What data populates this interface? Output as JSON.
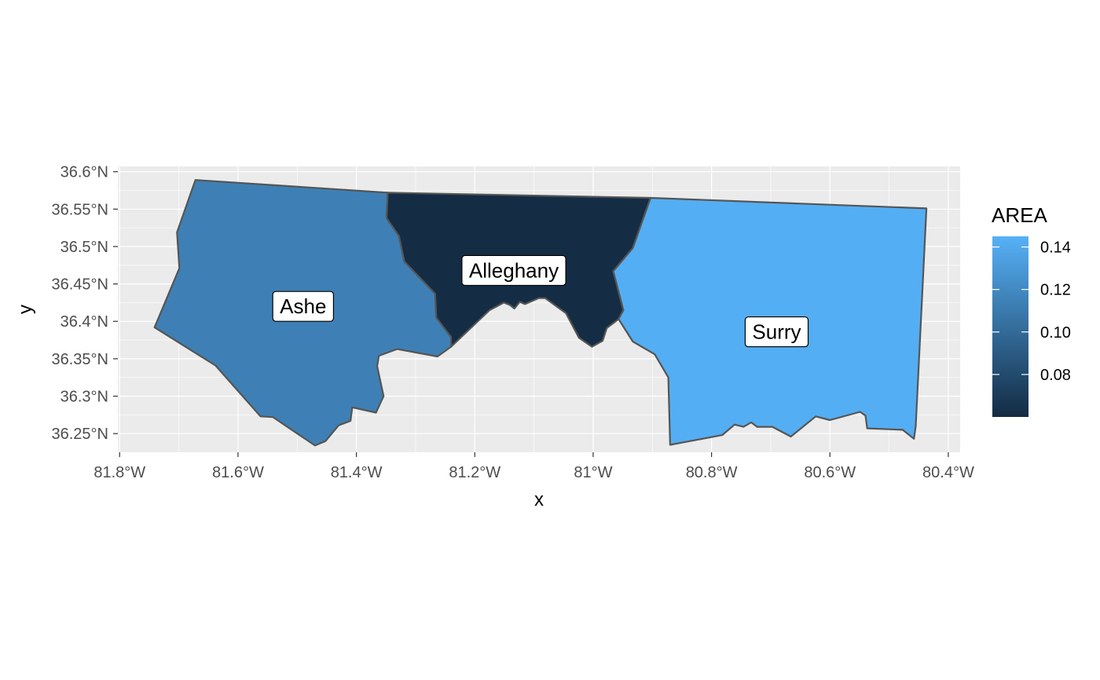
{
  "chart_data": {
    "type": "map",
    "xlabel": "x",
    "ylabel": "y",
    "x_ticks": [
      {
        "value": -81.8,
        "label": "81.8°W"
      },
      {
        "value": -81.6,
        "label": "81.6°W"
      },
      {
        "value": -81.4,
        "label": "81.4°W"
      },
      {
        "value": -81.2,
        "label": "81.2°W"
      },
      {
        "value": -81.0,
        "label": "81°W"
      },
      {
        "value": -80.8,
        "label": "80.8°W"
      },
      {
        "value": -80.6,
        "label": "80.6°W"
      },
      {
        "value": -80.4,
        "label": "80.4°W"
      }
    ],
    "y_ticks": [
      {
        "value": 36.25,
        "label": "36.25°N"
      },
      {
        "value": 36.3,
        "label": "36.3°N"
      },
      {
        "value": 36.35,
        "label": "36.35°N"
      },
      {
        "value": 36.4,
        "label": "36.4°N"
      },
      {
        "value": 36.45,
        "label": "36.45°N"
      },
      {
        "value": 36.5,
        "label": "36.5°N"
      },
      {
        "value": 36.55,
        "label": "36.55°N"
      },
      {
        "value": 36.6,
        "label": "36.6°N"
      }
    ],
    "xlim": [
      -81.803,
      -80.38
    ],
    "ylim": [
      36.225,
      36.607
    ],
    "grid": true,
    "legend": {
      "title": "AREA",
      "position": "right",
      "range": [
        0.06,
        0.145
      ],
      "color_low": "#132B43",
      "color_high": "#56B1F7",
      "ticks": [
        {
          "value": 0.08,
          "label": "0.08"
        },
        {
          "value": 0.1,
          "label": "0.10"
        },
        {
          "value": 0.12,
          "label": "0.12"
        },
        {
          "value": 0.14,
          "label": "0.14"
        }
      ]
    },
    "regions": [
      {
        "name": "Ashe",
        "area": 0.114,
        "label_pos": [
          -81.49,
          36.42
        ],
        "polygon": [
          [
            -81.672,
            36.589
          ],
          [
            -81.347,
            36.572
          ],
          [
            -81.349,
            36.538
          ],
          [
            -81.328,
            36.514
          ],
          [
            -81.319,
            36.48
          ],
          [
            -81.267,
            36.437
          ],
          [
            -81.265,
            36.405
          ],
          [
            -81.24,
            36.379
          ],
          [
            -81.24,
            36.366
          ],
          [
            -81.263,
            36.353
          ],
          [
            -81.331,
            36.363
          ],
          [
            -81.362,
            36.354
          ],
          [
            -81.365,
            36.34
          ],
          [
            -81.354,
            36.3
          ],
          [
            -81.367,
            36.278
          ],
          [
            -81.407,
            36.285
          ],
          [
            -81.41,
            36.267
          ],
          [
            -81.43,
            36.261
          ],
          [
            -81.452,
            36.24
          ],
          [
            -81.47,
            36.234
          ],
          [
            -81.541,
            36.272
          ],
          [
            -81.562,
            36.273
          ],
          [
            -81.638,
            36.341
          ],
          [
            -81.741,
            36.392
          ],
          [
            -81.699,
            36.471
          ],
          [
            -81.703,
            36.519
          ]
        ]
      },
      {
        "name": "Alleghany",
        "area": 0.061,
        "label_pos": [
          -81.134,
          36.468
        ],
        "polygon": [
          [
            -81.347,
            36.572
          ],
          [
            -80.903,
            36.565
          ],
          [
            -80.933,
            36.498
          ],
          [
            -80.966,
            36.467
          ],
          [
            -80.949,
            36.415
          ],
          [
            -80.957,
            36.403
          ],
          [
            -80.977,
            36.391
          ],
          [
            -80.984,
            36.374
          ],
          [
            -81.002,
            36.366
          ],
          [
            -81.024,
            36.378
          ],
          [
            -81.046,
            36.411
          ],
          [
            -81.081,
            36.431
          ],
          [
            -81.092,
            36.431
          ],
          [
            -81.115,
            36.423
          ],
          [
            -81.124,
            36.426
          ],
          [
            -81.133,
            36.417
          ],
          [
            -81.141,
            36.422
          ],
          [
            -81.151,
            36.425
          ],
          [
            -81.175,
            36.415
          ],
          [
            -81.24,
            36.366
          ],
          [
            -81.24,
            36.379
          ],
          [
            -81.265,
            36.405
          ],
          [
            -81.267,
            36.437
          ],
          [
            -81.319,
            36.48
          ],
          [
            -81.328,
            36.514
          ],
          [
            -81.349,
            36.538
          ]
        ]
      },
      {
        "name": "Surry",
        "area": 0.143,
        "label_pos": [
          -80.69,
          36.386
        ],
        "polygon": [
          [
            -80.903,
            36.565
          ],
          [
            -80.437,
            36.551
          ],
          [
            -80.455,
            36.26
          ],
          [
            -80.458,
            36.243
          ],
          [
            -80.477,
            36.255
          ],
          [
            -80.537,
            36.257
          ],
          [
            -80.54,
            36.274
          ],
          [
            -80.549,
            36.279
          ],
          [
            -80.6,
            36.268
          ],
          [
            -80.624,
            36.273
          ],
          [
            -80.666,
            36.246
          ],
          [
            -80.697,
            36.259
          ],
          [
            -80.723,
            36.259
          ],
          [
            -80.733,
            36.265
          ],
          [
            -80.746,
            36.259
          ],
          [
            -80.761,
            36.262
          ],
          [
            -80.782,
            36.248
          ],
          [
            -80.87,
            36.235
          ],
          [
            -80.873,
            36.325
          ],
          [
            -80.896,
            36.356
          ],
          [
            -80.933,
            36.373
          ],
          [
            -80.957,
            36.403
          ],
          [
            -80.949,
            36.415
          ],
          [
            -80.966,
            36.467
          ],
          [
            -80.933,
            36.498
          ]
        ]
      }
    ]
  }
}
